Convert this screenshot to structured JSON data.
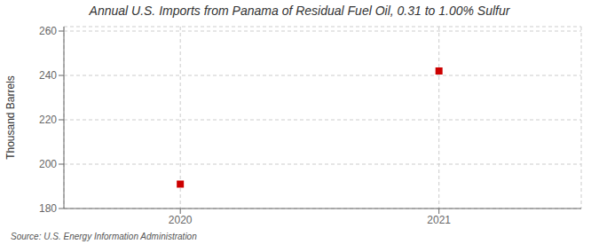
{
  "chart_data": {
    "type": "scatter",
    "title": "Annual U.S. Imports from Panama of Residual Fuel Oil, 0.31 to 1.00% Sulfur",
    "ylabel": "Thousand Barrels",
    "annotations": [
      "Source: U.S. Energy Information Administration"
    ],
    "x": [
      2020,
      2021
    ],
    "values": [
      191,
      242
    ],
    "color": "#cc0000",
    "marker": "square",
    "xlim": [
      2019.55,
      2021.55
    ],
    "ylim": [
      180,
      262
    ],
    "xticks": [
      2020,
      2021
    ],
    "yticks": [
      180,
      200,
      220,
      240,
      260
    ],
    "grid": true
  }
}
